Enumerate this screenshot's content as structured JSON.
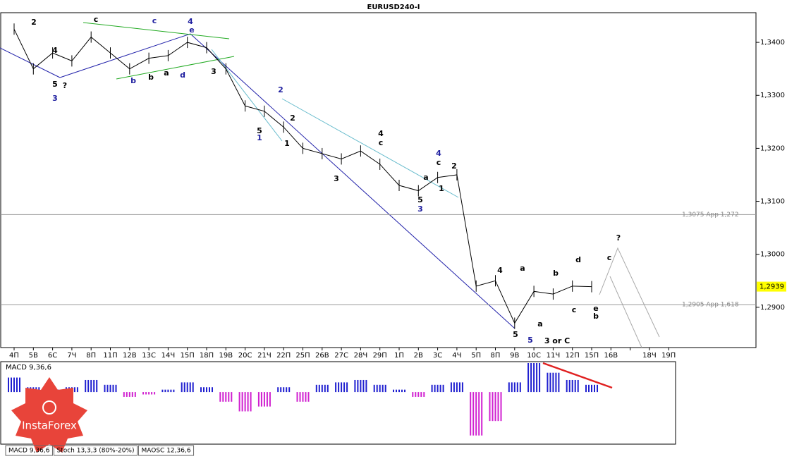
{
  "chart_data": [
    {
      "type": "line",
      "title": "EURUSD240-I",
      "categories": [
        "4П",
        "5В",
        "6С",
        "7Ч",
        "8П",
        "11П",
        "12В",
        "13С",
        "14Ч",
        "15П",
        "18П",
        "19В",
        "20С",
        "21Ч",
        "22П",
        "25П",
        "26В",
        "27С",
        "28Ч",
        "29П",
        "1П",
        "2В",
        "3С",
        "4Ч",
        "5П",
        "8П",
        "9В",
        "10С",
        "11Ч",
        "12П",
        "15П",
        "16В",
        null,
        "18Ч",
        "19П"
      ],
      "series": [
        {
          "name": "EURUSD240-I",
          "color": "#000000",
          "values": [
            1.3425,
            1.335,
            1.338,
            1.3365,
            1.341,
            1.338,
            1.335,
            1.337,
            1.3375,
            1.34,
            1.339,
            1.335,
            1.328,
            1.327,
            1.324,
            1.32,
            1.319,
            1.318,
            1.3195,
            1.317,
            1.313,
            1.312,
            1.3145,
            1.315,
            1.294,
            1.295,
            1.287,
            1.293,
            1.2925,
            1.294,
            1.2939,
            null,
            null,
            null,
            null
          ]
        }
      ],
      "ylim": [
        1.2824,
        1.3456
      ],
      "yticks": [
        {
          "value": 1.29,
          "label": "1,2900"
        },
        {
          "value": 1.3,
          "label": "1,3000"
        },
        {
          "value": 1.31,
          "label": "1,3100"
        },
        {
          "value": 1.32,
          "label": "1,3200"
        },
        {
          "value": 1.33,
          "label": "1,3300"
        },
        {
          "value": 1.34,
          "label": "1,3400"
        }
      ],
      "levels": [
        {
          "value": 1.3075,
          "label": "1,3075 App 1,272"
        },
        {
          "value": 1.2905,
          "label": "1,2905 App 1,618"
        }
      ],
      "current_price": {
        "value": 1.2939,
        "label": "1,2939"
      },
      "annotations": [
        "5",
        "3",
        "?",
        "4",
        "2",
        "c",
        "c",
        "b",
        "d",
        "4",
        "e",
        "a",
        "b",
        "3",
        "2",
        "1",
        "5",
        "1",
        "2",
        "1",
        "a",
        "4",
        "c",
        "3",
        "4",
        "c",
        "5",
        "3",
        "2",
        "4",
        "a",
        "a",
        "b",
        "c",
        "d",
        "e",
        "b",
        "c",
        "?",
        "5",
        "5",
        "3 or C"
      ]
    },
    {
      "type": "bar",
      "title": "MACD 9,36,6",
      "values": [
        0.0006,
        0.0002,
        0.0001,
        0.0002,
        0.0005,
        0.0003,
        -0.0002,
        -0.0001,
        0.0001,
        0.0004,
        0.0002,
        -0.0004,
        -0.0008,
        -0.0006,
        0.0002,
        -0.0004,
        0.0003,
        0.0004,
        0.0005,
        0.0003,
        0.0001,
        -0.0002,
        0.0003,
        0.0004,
        -0.0018,
        -0.0012,
        0.0004,
        0.0012,
        0.0008,
        0.0005,
        0.0003,
        null,
        null,
        null,
        null
      ],
      "color_up": "#1f1fd0",
      "color_down": "#d020d0",
      "ylim": [
        -0.0021,
        0.0012
      ],
      "tabs": [
        "MACD 9,36,6",
        "Stoch 13,3,3 (80%-20%)",
        "MAOSC 12,36,6"
      ]
    },
    {
      "type": "logo",
      "title": "InstaForex"
    }
  ]
}
